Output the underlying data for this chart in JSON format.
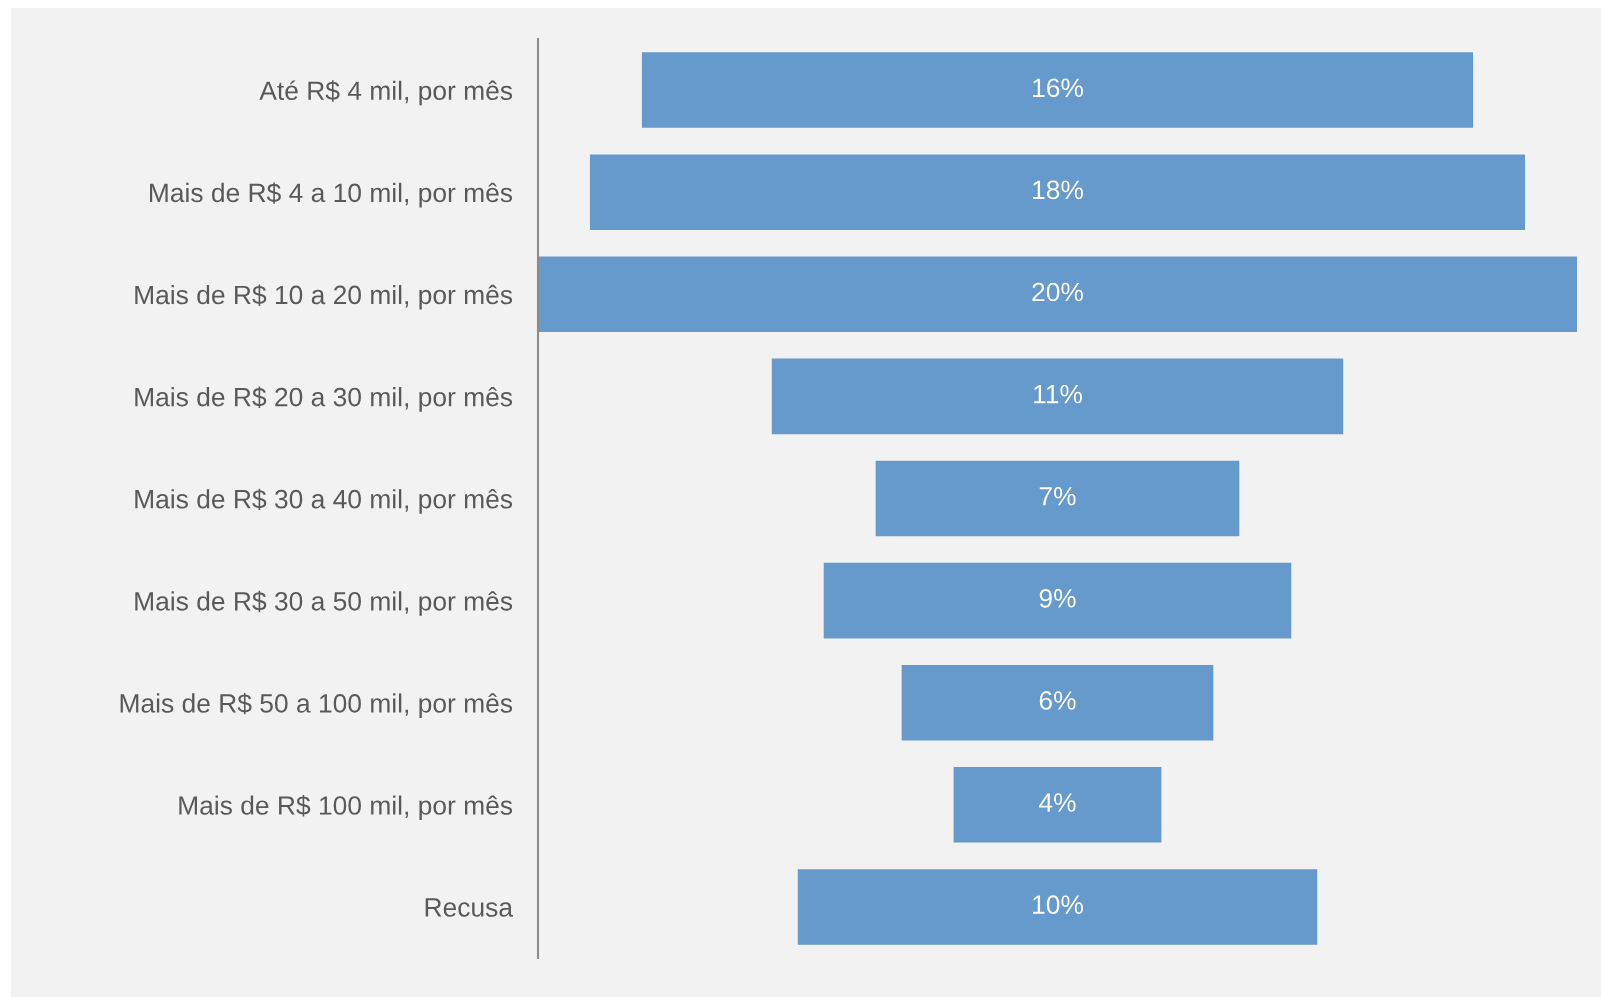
{
  "chart_data": {
    "type": "other",
    "categories": [
      "Até R$ 4 mil, por mês",
      "Mais de R$ 4 a 10 mil, por mês",
      "Mais de R$ 10 a 20 mil, por mês",
      "Mais de R$ 20 a 30 mil, por mês",
      "Mais de R$ 30 a 40 mil, por mês",
      "Mais de R$ 30 a 50 mil, por mês",
      "Mais de R$ 50 a 100 mil, por mês",
      "Mais de R$ 100 mil, por mês",
      "Recusa"
    ],
    "values": [
      16,
      18,
      20,
      11,
      7,
      9,
      6,
      4,
      10
    ],
    "value_labels": [
      "16%",
      "18%",
      "20%",
      "11%",
      "7%",
      "9%",
      "6%",
      "4%",
      "10%"
    ],
    "color": "#6699cc"
  }
}
